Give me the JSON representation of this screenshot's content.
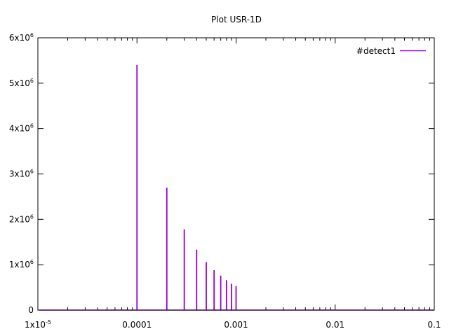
{
  "chart_data": {
    "type": "line",
    "title": "Plot USR-1D",
    "xlabel": "",
    "ylabel": "",
    "xscale": "log",
    "xlim": [
      1e-05,
      0.1
    ],
    "ylim": [
      0,
      6000000
    ],
    "grid": false,
    "legend": "top-right",
    "x_ticks": [
      {
        "value": 1e-05,
        "base": "1x10",
        "exp": "-5"
      },
      {
        "value": 0.0001,
        "label": "0.0001"
      },
      {
        "value": 0.001,
        "label": "0.001"
      },
      {
        "value": 0.01,
        "label": "0.01"
      },
      {
        "value": 0.1,
        "label": "0.1"
      }
    ],
    "y_ticks": [
      {
        "value": 0,
        "label": "0"
      },
      {
        "value": 1000000,
        "base": "1x10",
        "exp": "6"
      },
      {
        "value": 2000000,
        "base": "2x10",
        "exp": "6"
      },
      {
        "value": 3000000,
        "base": "3x10",
        "exp": "6"
      },
      {
        "value": 4000000,
        "base": "4x10",
        "exp": "6"
      },
      {
        "value": 5000000,
        "base": "5x10",
        "exp": "6"
      },
      {
        "value": 6000000,
        "base": "6x10",
        "exp": "6"
      }
    ],
    "series": [
      {
        "name": "#detect1",
        "color": "#9400d3",
        "x_start": 1.03e-05,
        "x_end": 0.1,
        "spikes": [
          {
            "x": 0.0001,
            "y": 5400000
          },
          {
            "x": 0.0002,
            "y": 2700000
          },
          {
            "x": 0.0003,
            "y": 1780000
          },
          {
            "x": 0.0004,
            "y": 1330000
          },
          {
            "x": 0.0005,
            "y": 1060000
          },
          {
            "x": 0.0006,
            "y": 880000
          },
          {
            "x": 0.0007,
            "y": 760000
          },
          {
            "x": 0.0008,
            "y": 660000
          },
          {
            "x": 0.0009,
            "y": 580000
          },
          {
            "x": 0.001,
            "y": 530000
          }
        ]
      }
    ]
  }
}
